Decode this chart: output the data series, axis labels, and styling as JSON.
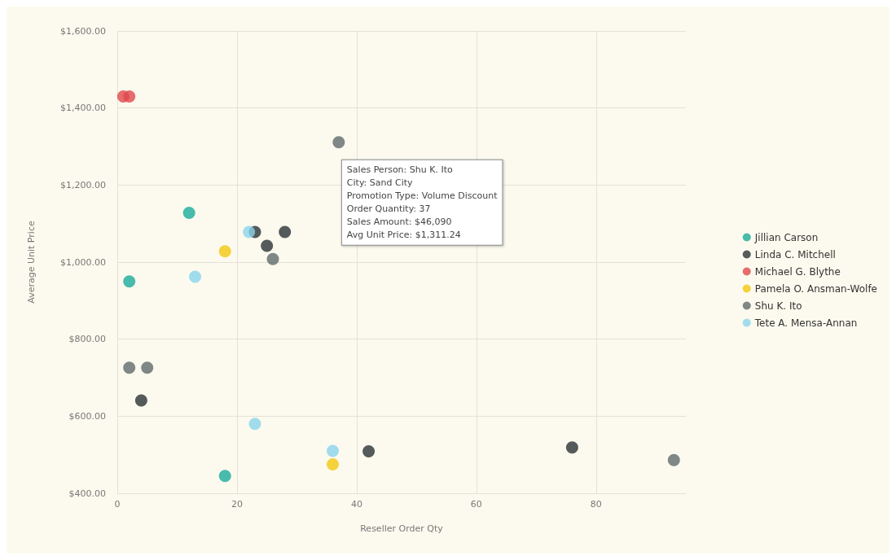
{
  "chart_data": {
    "type": "scatter",
    "xlabel": "Reseller Order Qty",
    "ylabel": "Average Unit Price",
    "xlim": [
      0,
      95
    ],
    "xticks": [
      0,
      20,
      40,
      60,
      80
    ],
    "ylim": [
      400,
      1600
    ],
    "yticks": [
      {
        "value": 400,
        "label": "$400.00"
      },
      {
        "value": 600,
        "label": "$600.00"
      },
      {
        "value": 800,
        "label": "$800.00"
      },
      {
        "value": 1000,
        "label": "$1,000.00"
      },
      {
        "value": 1200,
        "label": "$1,200.00"
      },
      {
        "value": 1400,
        "label": "$1,400.00"
      },
      {
        "value": 1600,
        "label": "$1,600.00"
      }
    ],
    "grid": true,
    "legend": "right",
    "marker": "circle",
    "series": [
      {
        "name": "Jillian Carson",
        "color": "#1aab9b",
        "x": [
          12,
          2,
          18
        ],
        "values": [
          1128,
          950,
          445
        ]
      },
      {
        "name": "Linda C. Mitchell",
        "color": "#2b3236",
        "x": [
          23,
          28,
          25,
          4,
          42,
          76
        ],
        "values": [
          1078,
          1078,
          1042,
          641,
          509,
          519
        ]
      },
      {
        "name": "Michael G. Blythe",
        "color": "#e0484e",
        "x": [
          1,
          2
        ],
        "values": [
          1430,
          1430
        ]
      },
      {
        "name": "Pamela O. Ansman-Wolfe",
        "color": "#f2c80f",
        "x": [
          18,
          36
        ],
        "values": [
          1028,
          475
        ]
      },
      {
        "name": "Shu K. Ito",
        "color": "#5f6b6d",
        "x": [
          37,
          26,
          2,
          5,
          93
        ],
        "values": [
          1311.24,
          1008,
          726,
          726,
          486
        ]
      },
      {
        "name": "Tete A. Mensa-Annan",
        "color": "#8ad4eb",
        "x": [
          22,
          13,
          23,
          36
        ],
        "values": [
          1078,
          962,
          580,
          510
        ]
      }
    ],
    "annotations": [
      {
        "text": "Sales Person: Shu K. Ito\nCity: Sand City\nPromotion Type: Volume Discount\nOrder Quantity: 37\nSales Amount: $46,090\nAvg Unit Price: $1,311.24",
        "x": 37,
        "y": 1311.24
      }
    ]
  }
}
